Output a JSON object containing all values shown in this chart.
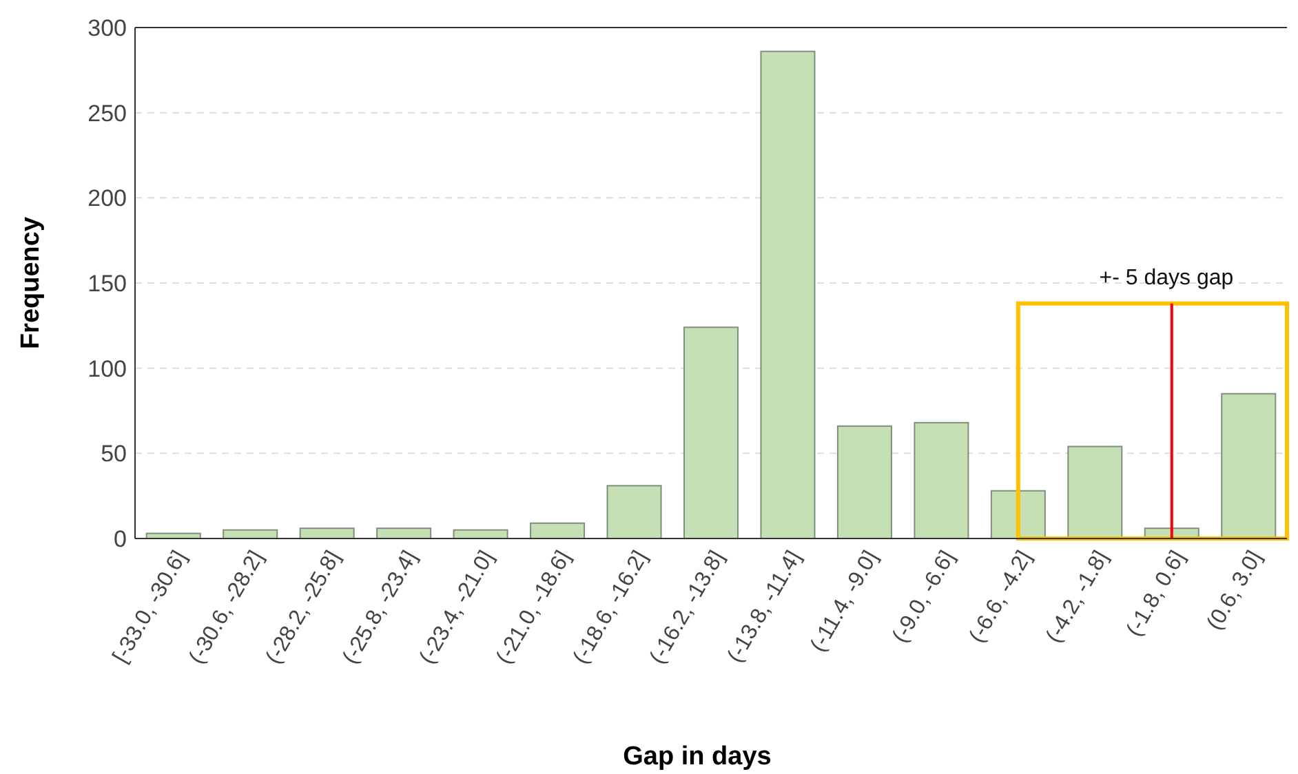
{
  "chart_data": {
    "type": "bar",
    "xlabel": "Gap in days",
    "ylabel": "Frequency",
    "categories": [
      "[-33.0, -30.6]",
      "(-30.6, -28.2]",
      "(-28.2, -25.8]",
      "(-25.8, -23.4]",
      "(-23.4, -21.0]",
      "(-21.0, -18.6]",
      "(-18.6, -16.2]",
      "(-16.2, -13.8]",
      "(-13.8, -11.4]",
      "(-11.4, -9.0]",
      "(-9.0, -6.6]",
      "(-6.6, -4.2]",
      "(-4.2, -1.8]",
      "(-1.8, 0.6]",
      "(0.6, 3.0]"
    ],
    "values": [
      3,
      5,
      6,
      6,
      5,
      9,
      31,
      124,
      286,
      66,
      68,
      28,
      54,
      6,
      85
    ],
    "color": "#c5e0b4",
    "ylim": [
      0,
      300
    ],
    "yticks": [
      0,
      50,
      100,
      150,
      200,
      250,
      300
    ],
    "grid": "y",
    "ref_lines": [
      {
        "axis": "x",
        "value": "(-1.8, 0.6]",
        "color": "#ff0000"
      }
    ],
    "annotations": [
      "+- 5 days gap"
    ]
  }
}
